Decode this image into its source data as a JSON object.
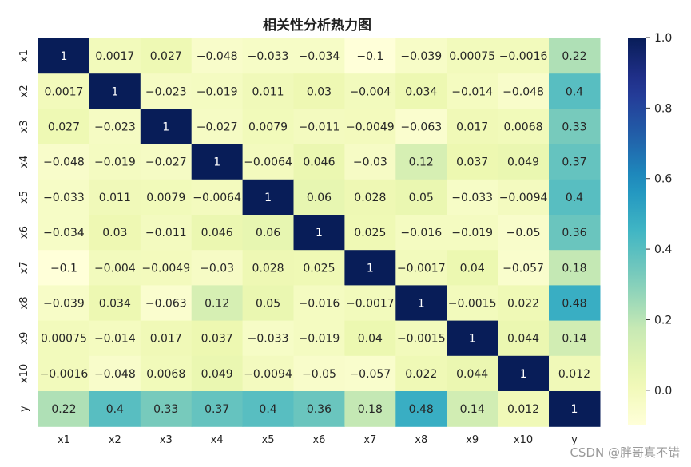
{
  "chart_data": {
    "type": "heatmap",
    "title": "相关性分析热力图",
    "colormap": "YlGnBu",
    "labels": [
      "x1",
      "x2",
      "x3",
      "x4",
      "x5",
      "x6",
      "x7",
      "x8",
      "x9",
      "x10",
      "y"
    ],
    "matrix": [
      [
        "1",
        "0.0017",
        "0.027",
        "-0.048",
        "-0.033",
        "-0.034",
        "-0.1",
        "-0.039",
        "0.00075",
        "-0.0016",
        "0.22"
      ],
      [
        "0.0017",
        "1",
        "-0.023",
        "-0.019",
        "0.011",
        "0.03",
        "-0.004",
        "0.034",
        "-0.014",
        "-0.048",
        "0.4"
      ],
      [
        "0.027",
        "-0.023",
        "1",
        "-0.027",
        "0.0079",
        "-0.011",
        "-0.0049",
        "-0.063",
        "0.017",
        "0.0068",
        "0.33"
      ],
      [
        "-0.048",
        "-0.019",
        "-0.027",
        "1",
        "-0.0064",
        "0.046",
        "-0.03",
        "0.12",
        "0.037",
        "0.049",
        "0.37"
      ],
      [
        "-0.033",
        "0.011",
        "0.0079",
        "-0.0064",
        "1",
        "0.06",
        "0.028",
        "0.05",
        "-0.033",
        "-0.0094",
        "0.4"
      ],
      [
        "-0.034",
        "0.03",
        "-0.011",
        "0.046",
        "0.06",
        "1",
        "0.025",
        "-0.016",
        "-0.019",
        "-0.05",
        "0.36"
      ],
      [
        "-0.1",
        "-0.004",
        "-0.0049",
        "-0.03",
        "0.028",
        "0.025",
        "1",
        "-0.0017",
        "0.04",
        "-0.057",
        "0.18"
      ],
      [
        "-0.039",
        "0.034",
        "-0.063",
        "0.12",
        "0.05",
        "-0.016",
        "-0.0017",
        "1",
        "-0.0015",
        "0.022",
        "0.48"
      ],
      [
        "0.00075",
        "-0.014",
        "0.017",
        "0.037",
        "-0.033",
        "-0.019",
        "0.04",
        "-0.0015",
        "1",
        "0.044",
        "0.14"
      ],
      [
        "-0.0016",
        "-0.048",
        "0.0068",
        "0.049",
        "-0.0094",
        "-0.05",
        "-0.057",
        "0.022",
        "0.044",
        "1",
        "0.012"
      ],
      [
        "0.22",
        "0.4",
        "0.33",
        "0.37",
        "0.4",
        "0.36",
        "0.18",
        "0.48",
        "0.14",
        "0.012",
        "1"
      ]
    ],
    "color_range": [
      -0.1,
      1.0
    ],
    "colorbar_ticks": [
      "0.0",
      "0.2",
      "0.4",
      "0.6",
      "0.8",
      "1.0"
    ],
    "colorbar_tick_values": [
      0.0,
      0.2,
      0.4,
      0.6,
      0.8,
      1.0
    ],
    "grid": false,
    "legend": "colorbar-right"
  },
  "watermark": "CSDN @胖哥真不错"
}
